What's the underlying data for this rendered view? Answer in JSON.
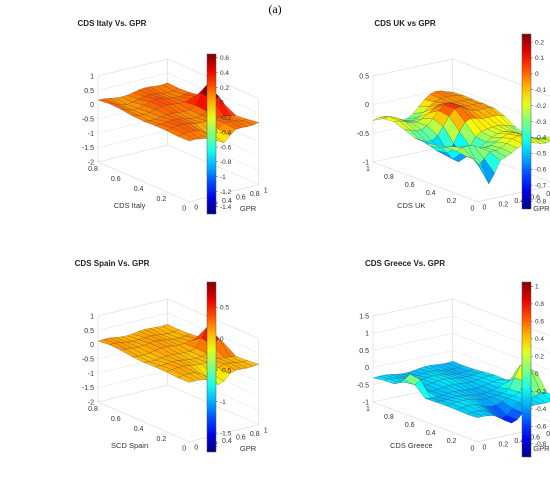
{
  "figure_label": "(a)",
  "chart_data": [
    {
      "type": "surface",
      "title": "CDS Italy Vs. GPR",
      "xlabel": "CDS Italy",
      "ylabel": "GPR",
      "zlabel": "",
      "x_ticks": [
        "0.8",
        "0.6",
        "0.4",
        "0.2",
        "0"
      ],
      "y_ticks": [
        "0",
        "0.2",
        "0.4",
        "0.6",
        "0.8",
        "1"
      ],
      "z_ticks": [
        "1",
        "0.5",
        "0",
        "-0.5",
        "-1",
        "-1.5",
        "-2"
      ],
      "zlim": [
        -2,
        1
      ],
      "colorbar": {
        "ticks": [
          "0.6",
          "0.4",
          "0.2",
          "0",
          "-0.2",
          "-0.4",
          "-0.6",
          "-0.8",
          "-1",
          "-1.2",
          "-1.4"
        ],
        "range": [
          -1.5,
          0.65
        ]
      },
      "surface": {
        "rows": 8,
        "cols": 12,
        "base": 0.15,
        "ripple": 0.08,
        "tilt": -0.05,
        "bumps": [
          {
            "x": 0.55,
            "y": 0.9,
            "height": 0.85,
            "width": 0.07
          },
          {
            "x": 0.95,
            "y": 0.5,
            "height": -0.45,
            "width": 0.08
          },
          {
            "x": 0.15,
            "y": 0.2,
            "height": -0.15,
            "width": 0.12
          }
        ]
      }
    },
    {
      "type": "surface",
      "title": "CDS UK vs GPR",
      "xlabel": "CDS UK",
      "ylabel": "GPR",
      "zlabel": "",
      "x_ticks": [
        "1",
        "0.8",
        "0.6",
        "0.4",
        "0.2",
        "0"
      ],
      "y_ticks": [
        "0",
        "0.2",
        "0.4",
        "0.6",
        "0.8",
        "1"
      ],
      "z_ticks": [
        "0.5",
        "0",
        "-0.5",
        "-1"
      ],
      "zlim": [
        -1,
        0.5
      ],
      "colorbar": {
        "ticks": [
          "0.2",
          "0.1",
          "0",
          "-0.1",
          "-0.2",
          "-0.3",
          "-0.4",
          "-0.5",
          "-0.6",
          "-0.7",
          "-0.8"
        ],
        "range": [
          -0.85,
          0.25
        ]
      },
      "surface": {
        "rows": 10,
        "cols": 14,
        "base": -0.25,
        "ripple": 0.12,
        "tilt": 0.05,
        "bumps": [
          {
            "x": 0.1,
            "y": 0.85,
            "height": 0.35,
            "width": 0.18
          },
          {
            "x": 0.45,
            "y": 0.55,
            "height": 0.3,
            "width": 0.15
          },
          {
            "x": 0.6,
            "y": 0.3,
            "height": -0.5,
            "width": 0.12
          },
          {
            "x": 0.97,
            "y": 0.15,
            "height": -0.55,
            "width": 0.06
          }
        ]
      }
    },
    {
      "type": "surface",
      "title": "CDS Spain Vs. GPR",
      "xlabel": "SCD Spain",
      "ylabel": "GPR",
      "zlabel": "",
      "x_ticks": [
        "0.8",
        "0.6",
        "0.4",
        "0.2",
        "0"
      ],
      "y_ticks": [
        "0",
        "0.2",
        "0.4",
        "0.6",
        "0.8",
        "1"
      ],
      "z_ticks": [
        "1",
        "0.5",
        "0",
        "-0.5",
        "-1",
        "-1.5",
        "-2"
      ],
      "zlim": [
        -2,
        1
      ],
      "colorbar": {
        "ticks": [
          "0.5",
          "0",
          "-0.5",
          "-1",
          "-1.5"
        ],
        "range": [
          -1.8,
          0.9
        ]
      },
      "surface": {
        "rows": 8,
        "cols": 12,
        "base": 0.1,
        "ripple": 0.06,
        "tilt": -0.05,
        "bumps": [
          {
            "x": 0.55,
            "y": 0.92,
            "height": 0.8,
            "width": 0.07
          },
          {
            "x": 0.95,
            "y": 0.45,
            "height": -0.4,
            "width": 0.08
          }
        ]
      }
    },
    {
      "type": "surface",
      "title": "CDS Greece Vs. GPR",
      "xlabel": "CDS Greece",
      "ylabel": "GPR",
      "zlabel": "",
      "x_ticks": [
        "1",
        "0.8",
        "0.6",
        "0.4",
        "0.2",
        "0"
      ],
      "y_ticks": [
        "0",
        "0.2",
        "0.4",
        "0.6",
        "0.8",
        "1"
      ],
      "z_ticks": [
        "1.5",
        "1",
        "0.5",
        "0",
        "-0.5",
        "-1"
      ],
      "zlim": [
        -1,
        1.5
      ],
      "colorbar": {
        "ticks": [
          "1",
          "0.8",
          "0.6",
          "0.4",
          "0.2",
          "0",
          "-0.2",
          "-0.4",
          "-0.6",
          "-0.8"
        ],
        "range": [
          -0.95,
          1.05
        ]
      },
      "surface": {
        "rows": 10,
        "cols": 14,
        "base": -0.3,
        "ripple": 0.06,
        "tilt": 0.0,
        "bumps": [
          {
            "x": 0.75,
            "y": 0.95,
            "height": 0.95,
            "width": 0.08
          },
          {
            "x": 0.35,
            "y": 0.05,
            "height": 0.75,
            "width": 0.05
          },
          {
            "x": 0.95,
            "y": 0.45,
            "height": -0.4,
            "width": 0.1
          }
        ]
      }
    }
  ]
}
